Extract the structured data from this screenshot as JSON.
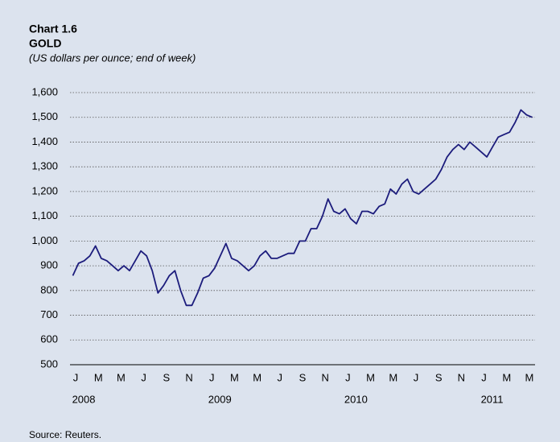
{
  "chart_data": {
    "type": "line",
    "title": "Chart 1.6",
    "subtitle": "GOLD",
    "unit_note": "(US dollars per ounce; end of week)",
    "source": "Source: Reuters.",
    "categories": [
      "J",
      null,
      null,
      null,
      "M",
      null,
      null,
      null,
      "M",
      null,
      null,
      null,
      "J",
      null,
      null,
      null,
      "S",
      null,
      null,
      null,
      "N",
      null,
      null,
      null,
      "J",
      null,
      null,
      null,
      "M",
      null,
      null,
      null,
      "M",
      null,
      null,
      null,
      "J",
      null,
      null,
      null,
      "S",
      null,
      null,
      null,
      "N",
      null,
      null,
      null,
      "J",
      null,
      null,
      null,
      "M",
      null,
      null,
      null,
      "M",
      null,
      null,
      null,
      "J",
      null,
      null,
      null,
      "S",
      null,
      null,
      null,
      "N",
      null,
      null,
      null,
      "J",
      null,
      null,
      null,
      "M",
      null,
      null,
      null,
      "M",
      null
    ],
    "years": [
      "2008",
      "2009",
      "2010",
      "2011"
    ],
    "series": [
      {
        "name": "Gold",
        "color": "#1c1c7c",
        "values": [
          860,
          910,
          920,
          940,
          980,
          930,
          920,
          900,
          880,
          900,
          880,
          920,
          960,
          940,
          880,
          790,
          820,
          860,
          880,
          800,
          740,
          740,
          790,
          850,
          860,
          890,
          940,
          990,
          930,
          920,
          900,
          880,
          900,
          940,
          960,
          930,
          930,
          940,
          950,
          950,
          1000,
          1000,
          1050,
          1050,
          1100,
          1170,
          1120,
          1110,
          1130,
          1090,
          1070,
          1120,
          1120,
          1110,
          1140,
          1150,
          1210,
          1190,
          1230,
          1250,
          1200,
          1190,
          1210,
          1230,
          1250,
          1290,
          1340,
          1370,
          1390,
          1370,
          1400,
          1380,
          1360,
          1340,
          1380,
          1420,
          1430,
          1440,
          1480,
          1530,
          1510,
          1500
        ]
      }
    ],
    "ylim": [
      500,
      1600
    ],
    "yticks": [
      500,
      600,
      700,
      800,
      900,
      {
        "value": 1000,
        "label": "1,000"
      },
      {
        "value": 1100,
        "label": "1,100"
      },
      {
        "value": 1200,
        "label": "1,200"
      },
      {
        "value": 1300,
        "label": "1,300"
      },
      {
        "value": 1400,
        "label": "1,400"
      },
      {
        "value": 1500,
        "label": "1,500"
      },
      {
        "value": 1600,
        "label": "1,600"
      }
    ],
    "grid": true
  }
}
